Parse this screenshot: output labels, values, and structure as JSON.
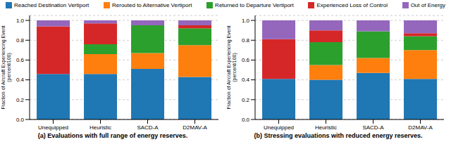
{
  "chart_data": [
    {
      "type": "bar",
      "stacked": true,
      "grid": true,
      "title": "(a) Evaluations with full range of energy reserves.",
      "ylabel": "Fraction of Aircraft Experiencing Event (percent/100)",
      "categories": [
        "Unequipped",
        "Heuristic",
        "SACD-A",
        "D2MAV-A"
      ],
      "ylim": [
        0,
        1.05
      ],
      "yticks": [
        {
          "value": 0,
          "label": "0.0"
        },
        0.2,
        0.4,
        0.6,
        0.8,
        {
          "value": 1,
          "label": "1.0"
        }
      ],
      "series": [
        {
          "name": "Reached Destination Vertiport",
          "color": "#1f77b4",
          "values": [
            0.46,
            0.46,
            0.51,
            0.43
          ]
        },
        {
          "name": "Rerouted to Alternative Vertiport",
          "color": "#ff7f0e",
          "values": [
            0,
            0.2,
            0.16,
            0.32
          ]
        },
        {
          "name": "Returned to Departure Vertiport",
          "color": "#2ca02c",
          "values": [
            0,
            0.1,
            0.28,
            0.17
          ]
        },
        {
          "name": "Experienced Loss of Control",
          "color": "#d62728",
          "values": [
            0.48,
            0.21,
            0,
            0.03
          ]
        },
        {
          "name": "Out of Energy",
          "color": "#9467bd",
          "values": [
            0.06,
            0.03,
            0.05,
            0.05
          ]
        }
      ]
    },
    {
      "type": "bar",
      "stacked": true,
      "grid": true,
      "title": "(b) Stressing evaluations with reduced energy reserves.",
      "ylabel": "Fraction of Aircraft Experiencing Event (percent/100)",
      "categories": [
        "Unequipped",
        "Heuristic",
        "SACD-A",
        "D2MAV-A"
      ],
      "ylim": [
        0,
        1.05
      ],
      "yticks": [
        {
          "value": 0,
          "label": "0.0"
        },
        0.2,
        0.4,
        0.6,
        0.8,
        {
          "value": 1,
          "label": "1.0"
        }
      ],
      "series": [
        {
          "name": "Reached Destination Vertiport",
          "color": "#1f77b4",
          "values": [
            0.41,
            0.4,
            0.47,
            0.41
          ]
        },
        {
          "name": "Rerouted to Alternative Vertiport",
          "color": "#ff7f0e",
          "values": [
            0,
            0.15,
            0.15,
            0.29
          ]
        },
        {
          "name": "Returned to Departure Vertiport",
          "color": "#2ca02c",
          "values": [
            0,
            0.23,
            0.27,
            0.14
          ]
        },
        {
          "name": "Experienced Loss of Control",
          "color": "#d62728",
          "values": [
            0.4,
            0.12,
            0,
            0.03
          ]
        },
        {
          "name": "Out of Energy",
          "color": "#9467bd",
          "values": [
            0.19,
            0.1,
            0.11,
            0.13
          ]
        }
      ]
    }
  ]
}
